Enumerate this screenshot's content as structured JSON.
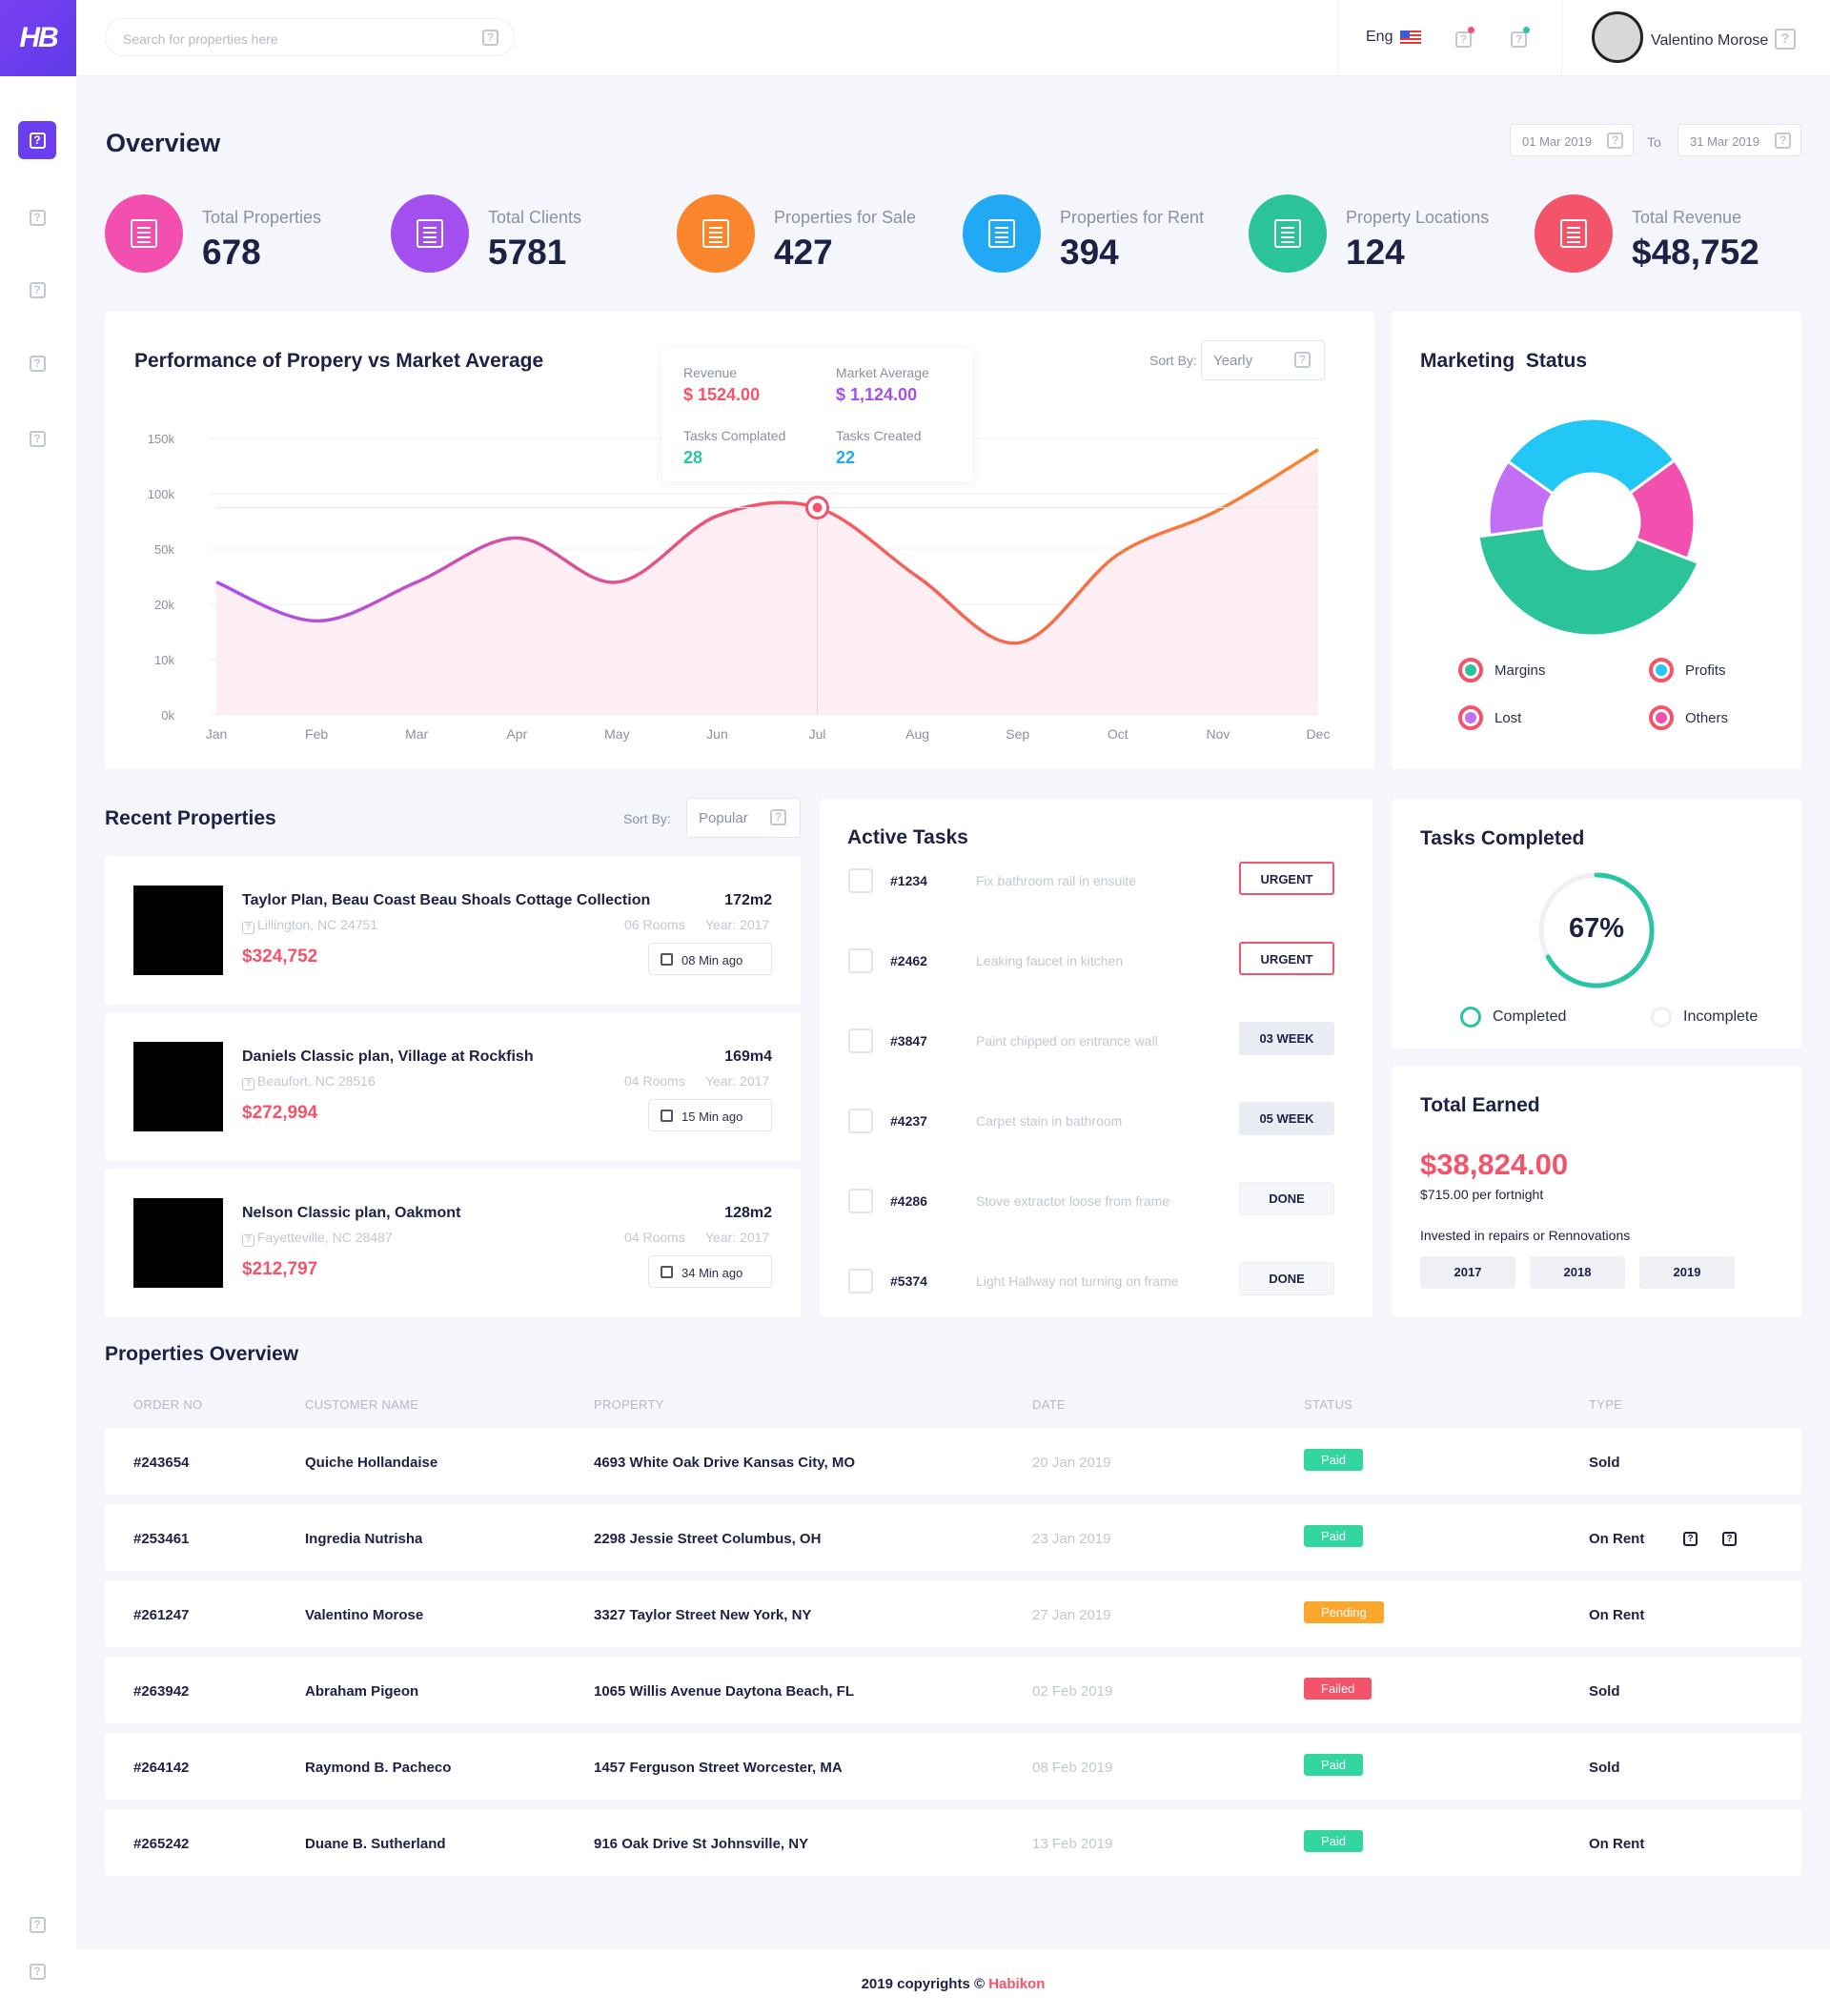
{
  "brand": {
    "logo_text": "HB"
  },
  "header": {
    "search_placeholder": "Search for properties here",
    "language": "Eng",
    "user_name": "Valentino Morose"
  },
  "overview": {
    "title": "Overview",
    "date_from": "01 Mar 2019",
    "date_to_label": "To",
    "date_to": "31 Mar 2019",
    "stats": [
      {
        "label": "Total Properties",
        "value": "678",
        "color": "#f34fae"
      },
      {
        "label": "Total Clients",
        "value": "5781",
        "color": "#a44ff0"
      },
      {
        "label": "Properties for Sale",
        "value": "427",
        "color": "#f9852d"
      },
      {
        "label": "Properties for Rent",
        "value": "394",
        "color": "#22a9f5"
      },
      {
        "label": "Property Locations",
        "value": "124",
        "color": "#2bc49a"
      },
      {
        "label": "Total Revenue",
        "value": "$48,752",
        "color": "#f3546a"
      }
    ]
  },
  "performance": {
    "title": "Performance of Propery vs Market Average",
    "sort_label": "Sort By:",
    "sort_value": "Yearly",
    "tooltip": {
      "revenue_label": "Revenue",
      "revenue_value": "$ 1524.00",
      "market_label": "Market Average",
      "market_value": "$ 1,124.00",
      "tasks_completed_label": "Tasks Complated",
      "tasks_completed_value": "28",
      "tasks_created_label": "Tasks Created",
      "tasks_created_value": "22"
    }
  },
  "chart_data": {
    "type": "area",
    "categories": [
      "Jan",
      "Feb",
      "Mar",
      "Apr",
      "May",
      "Jun",
      "Jul",
      "Aug",
      "Sep",
      "Oct",
      "Nov",
      "Dec"
    ],
    "y_tick_labels": [
      "0k",
      "10k",
      "20k",
      "50k",
      "100k",
      "150k"
    ],
    "series": [
      {
        "values": [
          2.4,
          1.7,
          2.4,
          3.2,
          2.4,
          3.6,
          3.75,
          2.5,
          1.3,
          2.9,
          3.7,
          4.8
        ]
      }
    ],
    "y_axis_note": "tick index scale 0-5",
    "highlight_category": "Jul",
    "gradient": [
      "#a94ff0",
      "#f3546a",
      "#f9852d"
    ]
  },
  "marketing": {
    "title": "Marketing  Status",
    "chart_data": {
      "type": "pie",
      "labels": [
        "Profits",
        "Others",
        "Margins",
        "Lost"
      ],
      "values": [
        30,
        16,
        42,
        12
      ],
      "colors": [
        "#22c7f5",
        "#f34fae",
        "#2bc49a",
        "#c26ff3"
      ]
    },
    "legend": [
      {
        "label": "Margins",
        "color": "#2bc49a"
      },
      {
        "label": "Profits",
        "color": "#22c7f5"
      },
      {
        "label": "Lost",
        "color": "#c26ff3"
      },
      {
        "label": "Others",
        "color": "#f34fae"
      }
    ]
  },
  "recent": {
    "title": "Recent Properties",
    "sort_label": "Sort By:",
    "sort_value": "Popular",
    "items": [
      {
        "title": "Taylor Plan, Beau Coast Beau Shoals Cottage Collection",
        "area": "172m2",
        "location": "Lillington, NC 24751",
        "rooms": "06 Rooms",
        "year": "Year:  2017",
        "price": "$324,752",
        "ago": "08 Min ago"
      },
      {
        "title": "Daniels Classic plan, Village at Rockfish",
        "area": "169m4",
        "location": "Beaufort, NC 28516",
        "rooms": "04 Rooms",
        "year": "Year:  2017",
        "price": "$272,994",
        "ago": "15 Min ago"
      },
      {
        "title": "Nelson Classic plan, Oakmont",
        "area": "128m2",
        "location": "Fayetteville, NC 28487",
        "rooms": "04 Rooms",
        "year": "Year:  2017",
        "price": "$212,797",
        "ago": "34 Min ago"
      }
    ]
  },
  "tasks": {
    "title": "Active Tasks",
    "items": [
      {
        "id": "#1234",
        "desc": "Fix bathroom rail in ensuite",
        "badge": "URGENT",
        "kind": "urgent"
      },
      {
        "id": "#2462",
        "desc": "Leaking faucet in kitchen",
        "badge": "URGENT",
        "kind": "urgent"
      },
      {
        "id": "#3847",
        "desc": "Paint chipped on entrance wall",
        "badge": "03 WEEK",
        "kind": "week"
      },
      {
        "id": "#4237",
        "desc": "Carpet stain in bathroom",
        "badge": "05 WEEK",
        "kind": "week"
      },
      {
        "id": "#4286",
        "desc": "Stove extractor loose from frame",
        "badge": "DONE",
        "kind": "done"
      },
      {
        "id": "#5374",
        "desc": "Light Hallway not turning on frame",
        "badge": "DONE",
        "kind": "done"
      }
    ]
  },
  "tasks_completed": {
    "title": "Tasks Completed",
    "percent_label": "67%",
    "fraction": 0.67,
    "completed_label": "Completed",
    "incomplete_label": "Incomplete"
  },
  "earned": {
    "title": "Total Earned",
    "amount": "$38,824.00",
    "per": "$715.00 per fortnight",
    "invested": "Invested in repairs or Rennovations",
    "years": [
      "2017",
      "2018",
      "2019"
    ]
  },
  "table": {
    "title": "Properties Overview",
    "headers": [
      "ORDER NO",
      "CUSTOMER NAME",
      "PROPERTY",
      "DATE",
      "STATUS",
      "TYPE"
    ],
    "rows": [
      {
        "order": "#243654",
        "customer": "Quiche Hollandaise",
        "property": "4693 White Oak Drive Kansas City, MO",
        "date": "20 Jan 2019",
        "status": "Paid",
        "status_color": "#33d69f",
        "type": "Sold"
      },
      {
        "order": "#253461",
        "customer": "Ingredia Nutrisha",
        "property": "2298 Jessie Street Columbus, OH",
        "date": "23 Jan 2019",
        "status": "Paid",
        "status_color": "#33d69f",
        "type": "On Rent"
      },
      {
        "order": "#261247",
        "customer": "Valentino Morose",
        "property": "3327 Taylor Street New York, NY",
        "date": "27 Jan 2019",
        "status": "Pending",
        "status_color": "#f9a72d",
        "type": "On Rent"
      },
      {
        "order": "#263942",
        "customer": "Abraham Pigeon",
        "property": "1065 Willis Avenue Daytona Beach, FL",
        "date": "02 Feb 2019",
        "status": "Failed",
        "status_color": "#f3546a",
        "type": "Sold"
      },
      {
        "order": "#264142",
        "customer": "Raymond B. Pacheco",
        "property": "1457 Ferguson Street Worcester, MA",
        "date": "08 Feb 2019",
        "status": "Paid",
        "status_color": "#33d69f",
        "type": "Sold"
      },
      {
        "order": "#265242",
        "customer": "Duane B. Sutherland",
        "property": "916 Oak Drive St Johnsville, NY",
        "date": "13 Feb 2019",
        "status": "Paid",
        "status_color": "#33d69f",
        "type": "On Rent"
      }
    ]
  },
  "footer": {
    "text": "2019 copyrights © ",
    "brand": "Habikon"
  }
}
